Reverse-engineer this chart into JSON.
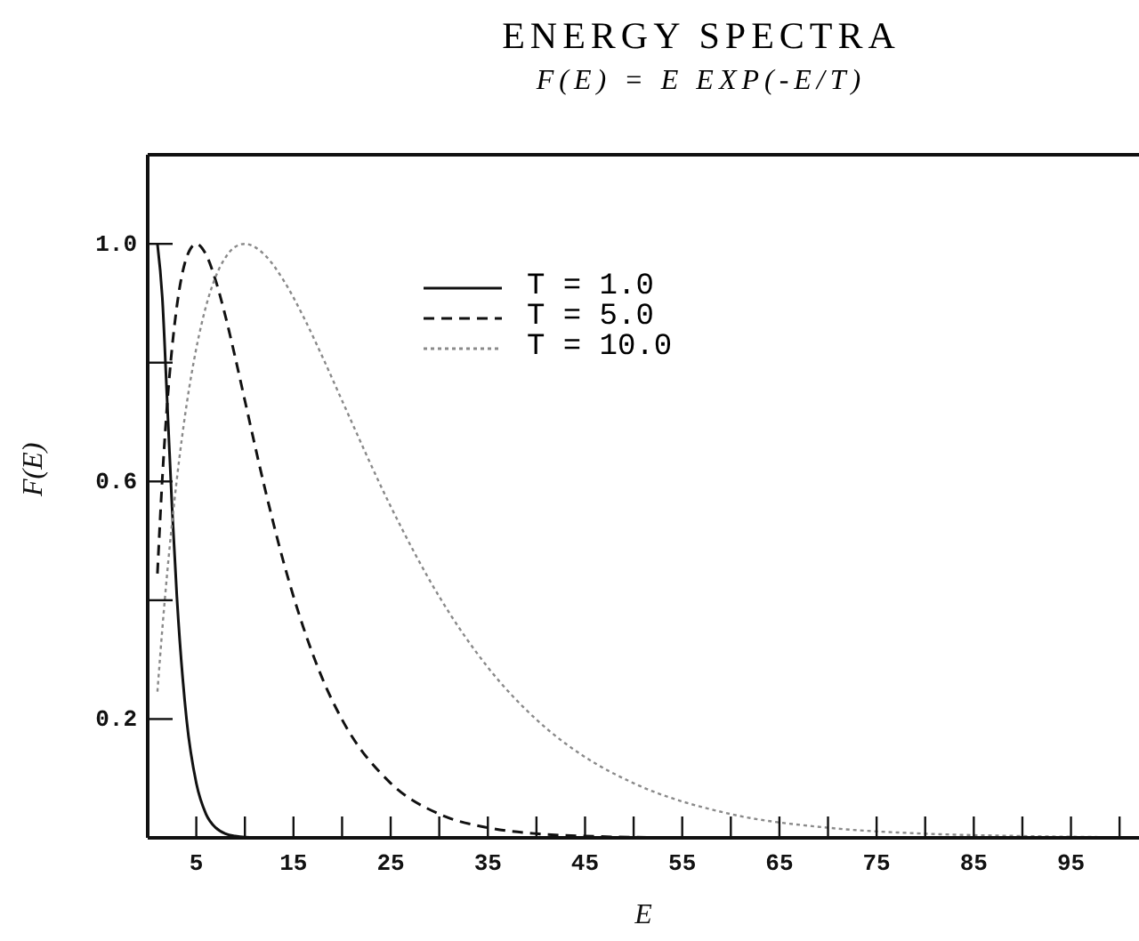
{
  "chart_data": {
    "type": "line",
    "title": "ENERGY SPECTRA",
    "subtitle": "F(E) = E EXP(-E/T)",
    "xlabel": "E",
    "ylabel": "F(E)",
    "x": [
      1,
      1.5,
      2,
      2.5,
      3,
      4,
      5,
      6,
      7,
      8,
      9,
      10,
      12,
      14,
      16,
      18,
      20,
      25,
      30,
      35,
      40,
      45,
      50,
      60,
      70,
      80,
      90,
      100
    ],
    "series": [
      {
        "name": "T = 1.0",
        "color": "#111111",
        "line_style": "solid",
        "values": [
          1,
          0.91,
          0.736,
          0.558,
          0.406,
          0.199,
          0.092,
          0.04,
          0.017,
          0.007,
          0.003,
          0.001,
          0,
          0,
          0,
          0,
          0,
          0,
          0,
          0,
          0,
          0,
          0,
          0,
          0,
          0,
          0,
          0
        ]
      },
      {
        "name": "T = 5.0",
        "color": "#111111",
        "line_style": "dashed",
        "values": [
          0.445,
          0.604,
          0.729,
          0.824,
          0.895,
          0.977,
          1,
          0.982,
          0.938,
          0.878,
          0.809,
          0.736,
          0.592,
          0.463,
          0.355,
          0.267,
          0.199,
          0.092,
          0.04,
          0.017,
          0.007,
          0.003,
          0.001,
          0,
          0,
          0,
          0,
          0
        ]
      },
      {
        "name": "T = 10.0",
        "color": "#8a8a8a",
        "line_style": "dotted",
        "values": [
          0.246,
          0.351,
          0.445,
          0.529,
          0.604,
          0.729,
          0.824,
          0.895,
          0.945,
          0.977,
          0.995,
          1,
          0.982,
          0.938,
          0.878,
          0.809,
          0.736,
          0.558,
          0.406,
          0.287,
          0.199,
          0.136,
          0.092,
          0.04,
          0.017,
          0.007,
          0.003,
          0.001
        ]
      }
    ],
    "xlim": [
      0,
      102
    ],
    "ylim": [
      0,
      1.15
    ],
    "xticks": [
      5,
      {
        "value": 10,
        "label": null
      },
      15,
      {
        "value": 20,
        "label": null
      },
      25,
      {
        "value": 30,
        "label": null
      },
      35,
      {
        "value": 40,
        "label": null
      },
      45,
      {
        "value": 50,
        "label": null
      },
      55,
      {
        "value": 60,
        "label": null
      },
      65,
      {
        "value": 70,
        "label": null
      },
      75,
      {
        "value": 80,
        "label": null
      },
      85,
      {
        "value": 90,
        "label": null
      },
      95,
      {
        "value": 100,
        "label": null
      }
    ],
    "yticks": [
      0.2,
      {
        "value": 0.4,
        "label": null
      },
      0.6,
      {
        "value": 0.8,
        "label": null
      },
      {
        "value": 1,
        "label": "1.0"
      }
    ],
    "legend": "top",
    "marker": "none"
  }
}
